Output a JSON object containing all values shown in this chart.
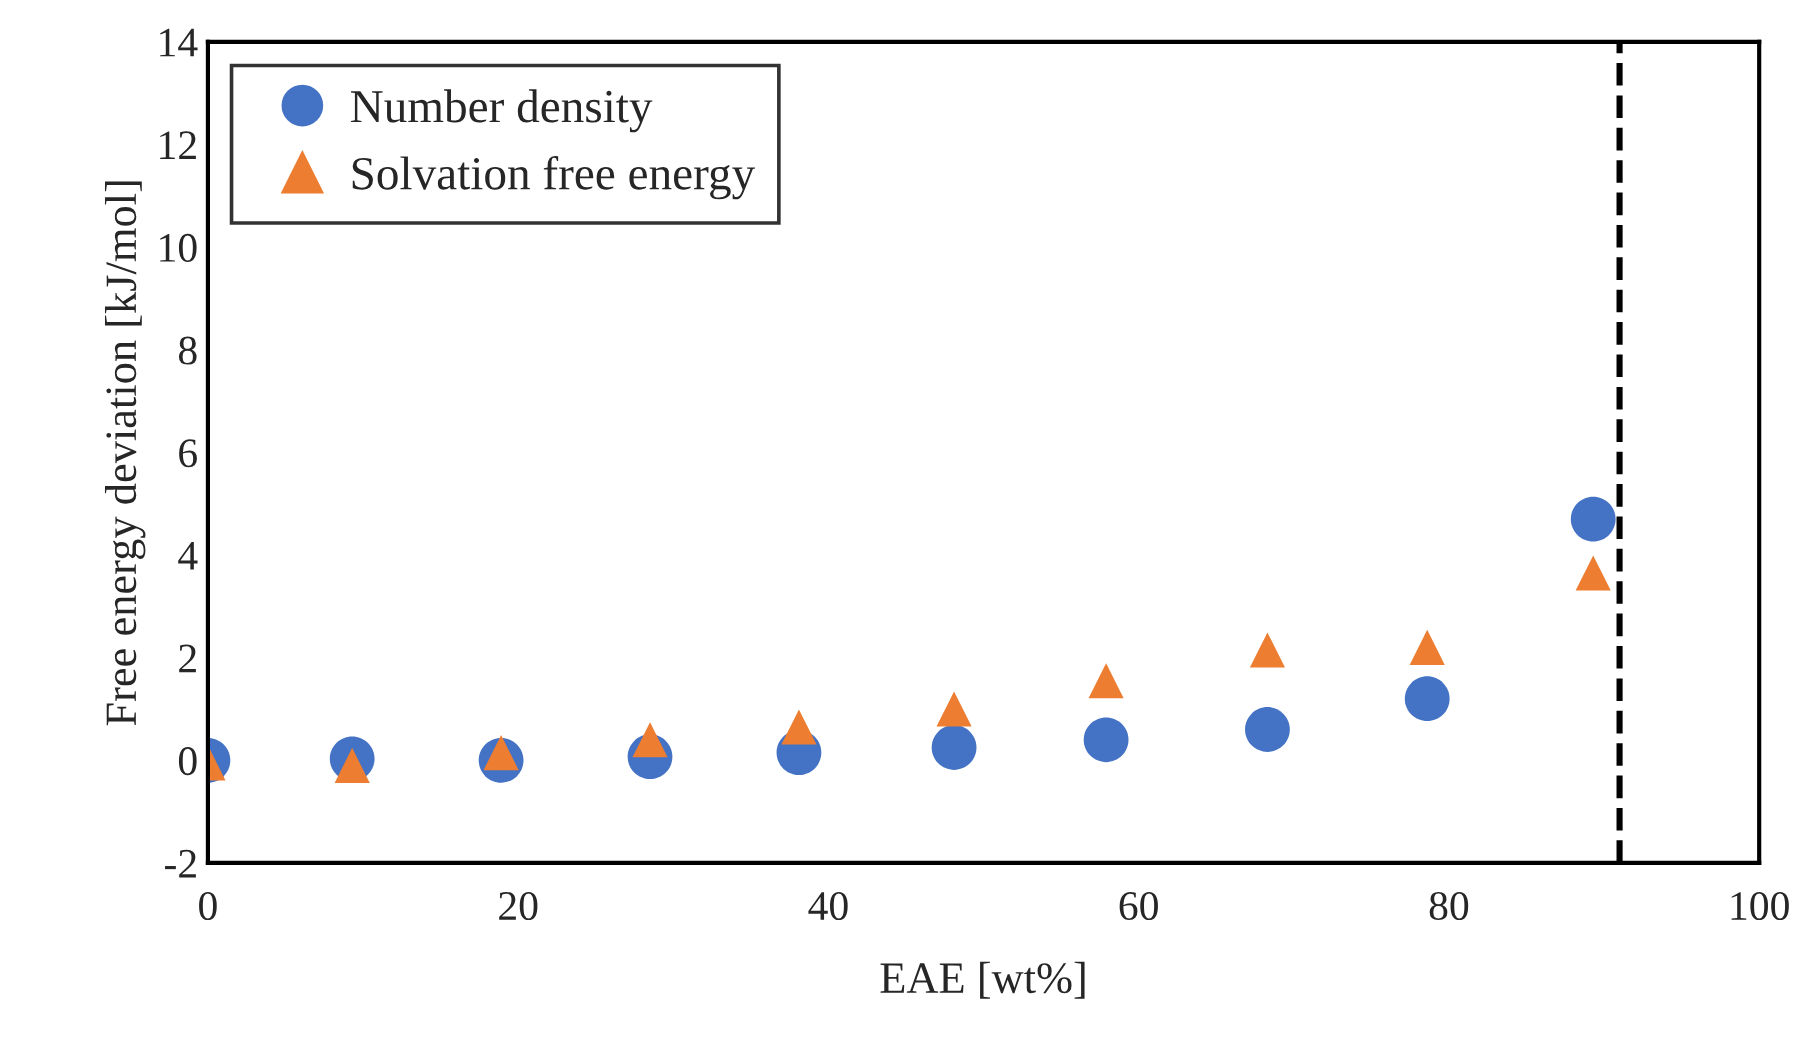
{
  "chart_data": {
    "type": "scatter",
    "xlabel": "EAE [wt%]",
    "ylabel": "Free energy deviation [kJ/mol]",
    "x": [
      0,
      9.3,
      18.9,
      28.5,
      38.1,
      48.1,
      57.9,
      68.3,
      78.6,
      89.3
    ],
    "series": [
      {
        "name": "Number density",
        "color": "#4472c4",
        "marker": "circle",
        "values": [
          0,
          0.03,
          0,
          0.07,
          0.15,
          0.25,
          0.4,
          0.6,
          1.2,
          4.7
        ]
      },
      {
        "name": "Solvation free energy",
        "color": "#ed7d31",
        "marker": "triangle",
        "values": [
          -0.05,
          -0.1,
          0.15,
          0.4,
          0.65,
          1.0,
          1.55,
          2.15,
          2.2,
          3.65
        ]
      }
    ],
    "xlim": [
      0,
      100
    ],
    "xticks": [
      0,
      20,
      40,
      60,
      80,
      100
    ],
    "ylim": [
      -2,
      14
    ],
    "yticks": [
      -2,
      0,
      2,
      4,
      6,
      8,
      10,
      12,
      14
    ],
    "ref_lines": [
      {
        "axis": "x",
        "value": 91,
        "label": null,
        "color": "#000000",
        "line_style": "dashed"
      }
    ],
    "grid": false,
    "legend": "top left"
  }
}
